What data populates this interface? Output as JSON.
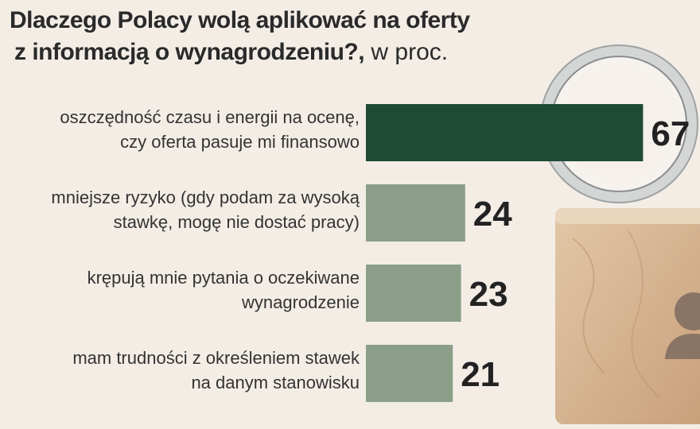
{
  "title_line1": "Dlaczego Polacy wolą aplikować na oferty",
  "title_line2": "z informacją o wynagrodzeniu?,",
  "unit": " w proc.",
  "colors": {
    "highlight_bar": "#1f4a35",
    "bar": "#8a9e88",
    "value_text": "#222222",
    "label_text": "#333333"
  },
  "chart_data": {
    "type": "bar",
    "orientation": "horizontal",
    "title": "Dlaczego Polacy wolą aplikować na oferty z informacją o wynagrodzeniu?",
    "unit": "w proc.",
    "categories": [
      [
        "oszczędność czasu i energii na ocenę,",
        "czy oferta pasuje mi finansowo"
      ],
      [
        "mniejsze ryzyko (gdy podam za wysoką",
        "stawkę, mogę nie dostać pracy)"
      ],
      [
        "krępują mnie pytania o oczekiwane",
        "wynagrodzenie"
      ],
      [
        "mam trudności z określeniem stawek",
        "na danym stanowisku"
      ]
    ],
    "values": [
      67,
      24,
      23,
      21
    ],
    "data_labels": [
      "67",
      "24",
      "23",
      "21"
    ],
    "xlim": [
      0,
      100
    ]
  }
}
